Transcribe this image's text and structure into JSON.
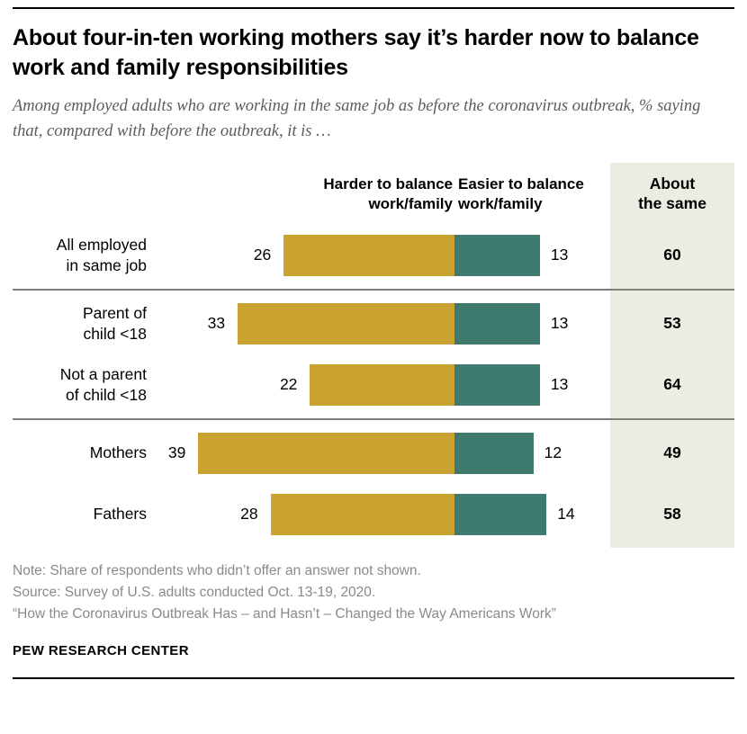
{
  "header": {
    "title": "About four-in-ten working mothers say it’s harder now to balance work and family responsibilities",
    "subtitle": "Among employed adults who are working in the same job as before the coronavirus outbreak, % saying that, compared with before the outbreak, it is …"
  },
  "chart_data": {
    "type": "bar",
    "orientation": "horizontal-diverging",
    "units": "percent",
    "col_headers": {
      "harder": "Harder to balance\nwork/family",
      "easier": "Easier to balance\nwork/family",
      "same": "About\nthe same"
    },
    "categories": [
      "All employed in same job",
      "Parent of child <18",
      "Not a parent of child <18",
      "Mothers",
      "Fathers"
    ],
    "series": [
      {
        "name": "Harder to balance work/family",
        "values": [
          26,
          33,
          22,
          39,
          28
        ]
      },
      {
        "name": "Easier to balance work/family",
        "values": [
          13,
          13,
          13,
          12,
          14
        ]
      },
      {
        "name": "About the same",
        "values": [
          60,
          53,
          64,
          49,
          58
        ]
      }
    ],
    "rows": [
      {
        "label": "All employed\nin same job",
        "harder": 26,
        "easier": 13,
        "same": 60
      },
      {
        "label": "Parent of\nchild <18",
        "harder": 33,
        "easier": 13,
        "same": 53
      },
      {
        "label": "Not a parent\nof child <18",
        "harder": 22,
        "easier": 13,
        "same": 64
      },
      {
        "label": "Mothers",
        "harder": 39,
        "easier": 12,
        "same": 49
      },
      {
        "label": "Fathers",
        "harder": 28,
        "easier": 14,
        "same": 58
      }
    ],
    "groups": [
      [
        0
      ],
      [
        1,
        2
      ],
      [
        3,
        4
      ]
    ],
    "legend_position": "column-headers",
    "grid": false
  },
  "colors": {
    "harder_bar": "#C9A22F",
    "easier_bar": "#3E7A6D",
    "same_column_bg": "#EDECE2",
    "separator": "#7D7D7D"
  },
  "footer": {
    "note": "Note: Share of respondents who didn’t offer an answer not shown.",
    "source": "Source: Survey of U.S. adults conducted Oct. 13-19, 2020.",
    "report": "“How the Coronavirus Outbreak Has – and Hasn’t – Changed the Way Americans Work”",
    "brand": "PEW RESEARCH CENTER"
  }
}
